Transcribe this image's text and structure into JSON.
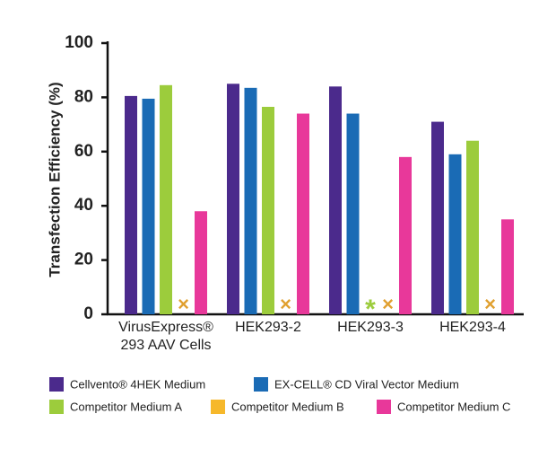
{
  "chart_data": {
    "type": "bar",
    "y_label": "Transfection  Efficiency  (%)",
    "categories": [
      "VirusExpress®\n293 AAV Cells",
      "HEK293-2",
      "HEK293-3",
      "HEK293-4"
    ],
    "series": [
      {
        "name": "Cellvento® 4HEK Medium",
        "color": "#4b2a8c",
        "values": [
          80.5,
          85,
          84,
          71
        ]
      },
      {
        "name": "EX-CELL® CD Viral Vector Medium",
        "color": "#1a6bb5",
        "values": [
          79.5,
          83.5,
          74,
          59
        ]
      },
      {
        "name": "Competitor Medium A",
        "color": "#9ccc3c",
        "values": [
          84.5,
          76.5,
          null,
          64
        ],
        "value_labels": [
          null,
          null,
          "*",
          null
        ]
      },
      {
        "name": "Competitor Medium B",
        "color": "#f6b82b",
        "values": [
          null,
          null,
          null,
          null
        ],
        "value_labels": [
          "×",
          "×",
          "×",
          "×"
        ]
      },
      {
        "name": "Competitor Medium C",
        "color": "#e8389a",
        "values": [
          38,
          74,
          58,
          35
        ]
      }
    ],
    "ylim": [
      0,
      100
    ],
    "yticks": [
      0,
      20,
      40,
      60,
      80,
      100
    ],
    "grid": false
  }
}
